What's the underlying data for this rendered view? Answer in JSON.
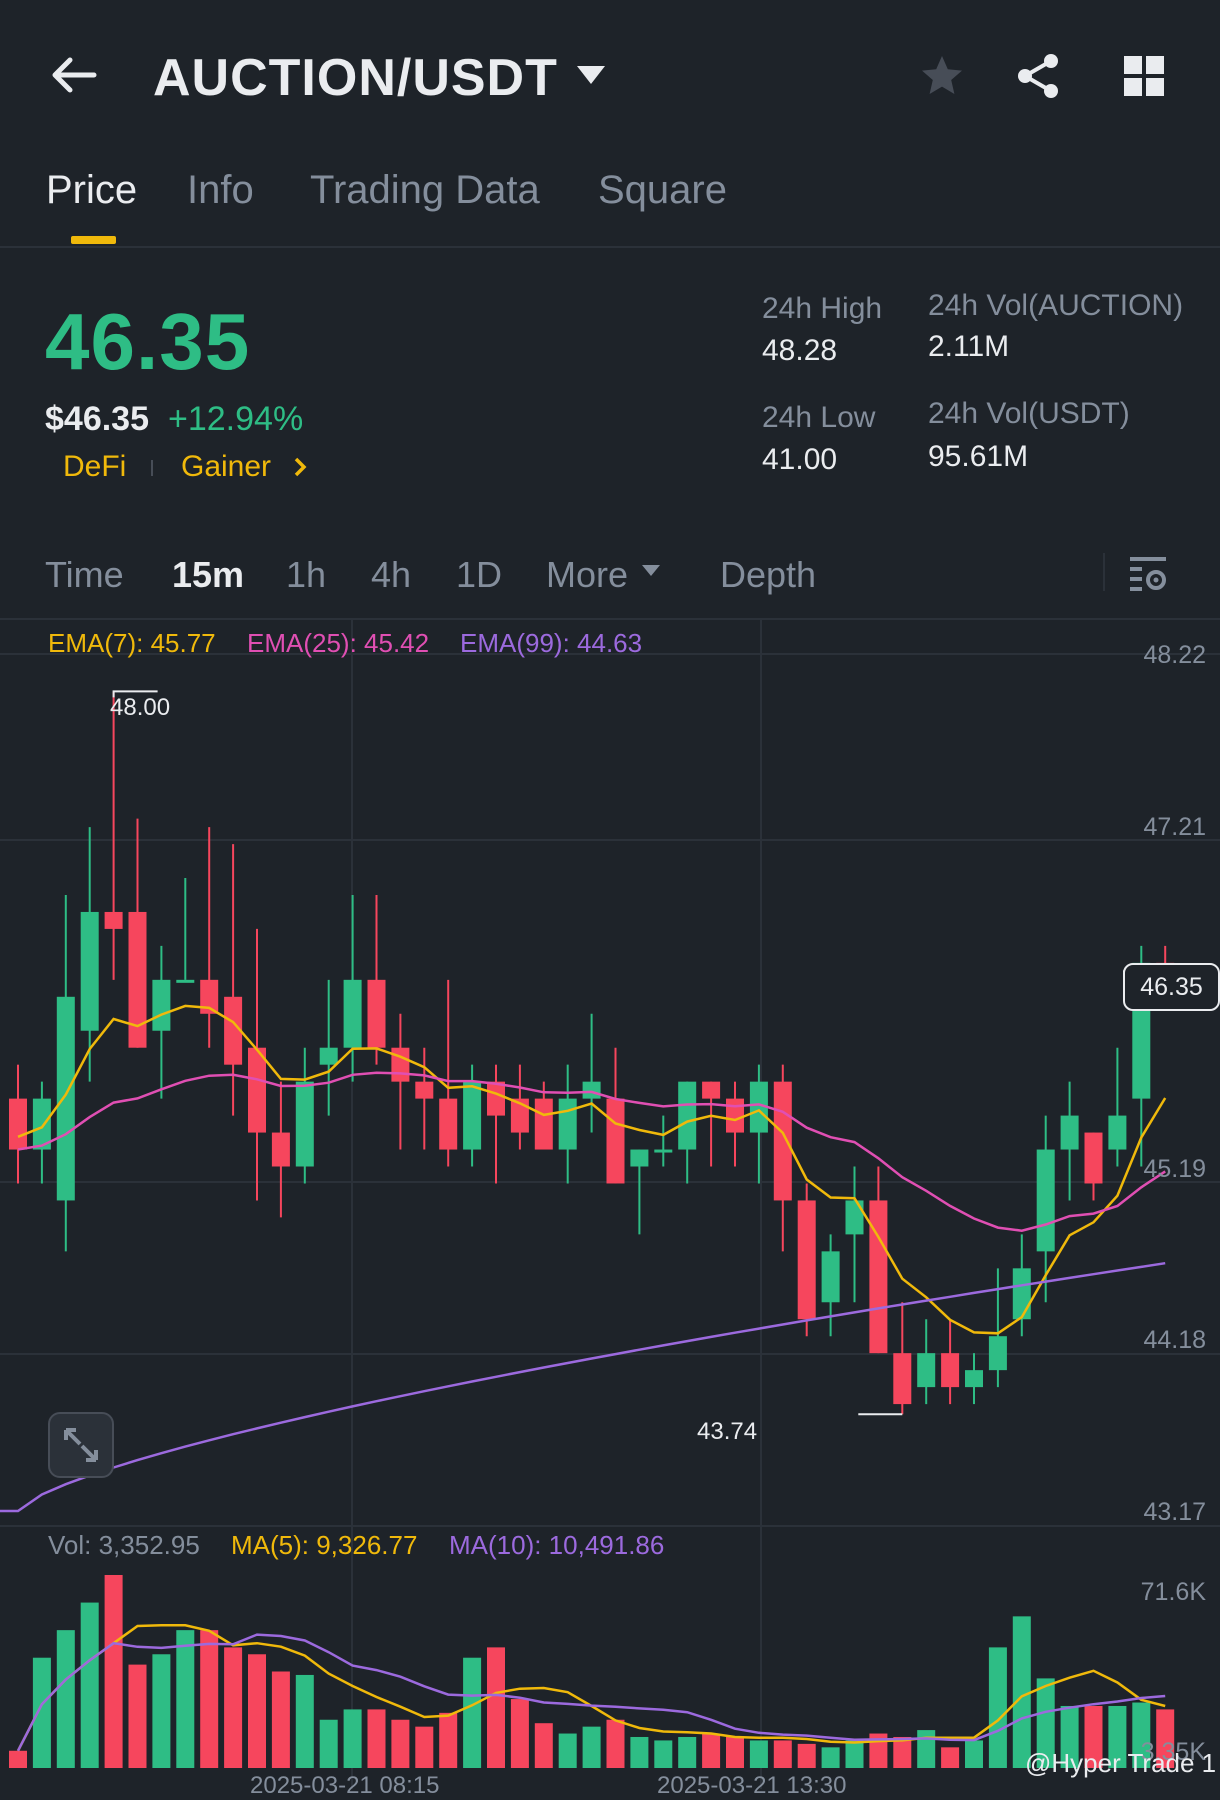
{
  "header": {
    "pair": "AUCTION/USDT",
    "back_icon": "arrow-left-icon",
    "dropdown_icon": "caret-down-icon",
    "favorite_icon": "star-icon",
    "share_icon": "share-icon",
    "grid_icon": "grid-icon"
  },
  "tabs": [
    {
      "label": "Price",
      "active": true
    },
    {
      "label": "Info",
      "active": false
    },
    {
      "label": "Trading Data",
      "active": false
    },
    {
      "label": "Square",
      "active": false
    }
  ],
  "price": {
    "last": "46.35",
    "fiat": "$46.35",
    "change": "+12.94%",
    "tags": [
      "DeFi",
      "Gainer"
    ]
  },
  "stats": {
    "high_label": "24h High",
    "high_value": "48.28",
    "low_label": "24h Low",
    "low_value": "41.00",
    "vol_base_label": "24h Vol(AUCTION)",
    "vol_base_value": "2.11M",
    "vol_quote_label": "24h Vol(USDT)",
    "vol_quote_value": "95.61M"
  },
  "intervals": {
    "time": "Time",
    "items": [
      "15m",
      "1h",
      "4h",
      "1D"
    ],
    "active": "15m",
    "more": "More",
    "depth": "Depth"
  },
  "indicators": {
    "ema7": "EMA(7): 45.77",
    "ema25": "EMA(25): 45.42",
    "ema99": "EMA(99): 44.63",
    "vol": "Vol: 3,352.95",
    "ma5": "MA(5): 9,326.77",
    "ma10": "MA(10): 10,491.86"
  },
  "colors": {
    "up": "#2ebd85",
    "down": "#f6465d",
    "ema7": "#f0b90b",
    "ema25": "#e04fb3",
    "ema99": "#9c6ade",
    "accent": "#f0b90b",
    "bg": "#1e2329"
  },
  "chart_data": {
    "type": "candlestick",
    "interval": "15m",
    "y_axis_ticks": [
      "48.22",
      "47.21",
      "45.19",
      "44.18",
      "43.17"
    ],
    "ylim": [
      43.17,
      48.22
    ],
    "high_marker": "48.00",
    "low_marker": "43.74",
    "current_price_label": "46.35",
    "candles": [
      [
        45.6,
        45.3,
        45.8,
        45.1
      ],
      [
        45.3,
        45.6,
        45.7,
        45.1
      ],
      [
        45.0,
        46.2,
        46.8,
        44.7
      ],
      [
        46.0,
        46.7,
        47.2,
        45.7
      ],
      [
        46.7,
        46.6,
        48.0,
        46.3
      ],
      [
        46.7,
        45.9,
        47.25,
        45.9
      ],
      [
        46.0,
        46.3,
        46.5,
        45.6
      ],
      [
        46.3,
        46.3,
        46.9,
        46.3
      ],
      [
        46.3,
        46.1,
        47.2,
        45.9
      ],
      [
        46.2,
        45.8,
        47.1,
        45.5
      ],
      [
        45.9,
        45.4,
        46.6,
        45.0
      ],
      [
        45.4,
        45.2,
        45.7,
        44.9
      ],
      [
        45.2,
        45.7,
        45.9,
        45.1
      ],
      [
        45.8,
        45.9,
        46.3,
        45.5
      ],
      [
        45.9,
        46.3,
        46.8,
        45.7
      ],
      [
        46.3,
        45.9,
        46.8,
        45.8
      ],
      [
        45.9,
        45.7,
        46.1,
        45.3
      ],
      [
        45.7,
        45.6,
        45.9,
        45.3
      ],
      [
        45.6,
        45.3,
        46.3,
        45.2
      ],
      [
        45.3,
        45.7,
        45.8,
        45.2
      ],
      [
        45.7,
        45.5,
        45.8,
        45.1
      ],
      [
        45.6,
        45.4,
        45.8,
        45.3
      ],
      [
        45.6,
        45.3,
        45.7,
        45.3
      ],
      [
        45.3,
        45.6,
        45.8,
        45.1
      ],
      [
        45.6,
        45.7,
        46.1,
        45.4
      ],
      [
        45.6,
        45.1,
        45.9,
        45.1
      ],
      [
        45.2,
        45.3,
        45.3,
        44.8
      ],
      [
        45.3,
        45.3,
        45.5,
        45.2
      ],
      [
        45.3,
        45.7,
        45.7,
        45.1
      ],
      [
        45.7,
        45.6,
        45.7,
        45.2
      ],
      [
        45.6,
        45.4,
        45.7,
        45.2
      ],
      [
        45.4,
        45.7,
        45.8,
        45.1
      ],
      [
        45.7,
        45.0,
        45.8,
        44.7
      ],
      [
        45.0,
        44.3,
        45.1,
        44.2
      ],
      [
        44.4,
        44.7,
        44.8,
        44.2
      ],
      [
        44.8,
        45.0,
        45.2,
        44.4
      ],
      [
        45.0,
        44.1,
        45.2,
        44.1
      ],
      [
        44.1,
        43.8,
        44.4,
        43.74
      ],
      [
        43.9,
        44.1,
        44.3,
        43.8
      ],
      [
        44.1,
        43.9,
        44.3,
        43.8
      ],
      [
        43.9,
        44.0,
        44.1,
        43.8
      ],
      [
        44.0,
        44.2,
        44.6,
        43.9
      ],
      [
        44.3,
        44.6,
        44.8,
        44.2
      ],
      [
        44.7,
        45.3,
        45.5,
        44.4
      ],
      [
        45.3,
        45.5,
        45.7,
        45.0
      ],
      [
        45.4,
        45.1,
        45.4,
        45.0
      ],
      [
        45.3,
        45.5,
        45.9,
        45.2
      ],
      [
        45.6,
        46.4,
        46.5,
        45.2
      ],
      [
        46.4,
        46.3,
        46.5,
        46.2
      ]
    ]
  },
  "volume_axis_ticks": [
    "71.6K",
    "3.35K"
  ],
  "x_labels": [
    "2025-03-21 08:15",
    "2025-03-21 13:30"
  ],
  "watermark": "@Hyper Trade 1"
}
